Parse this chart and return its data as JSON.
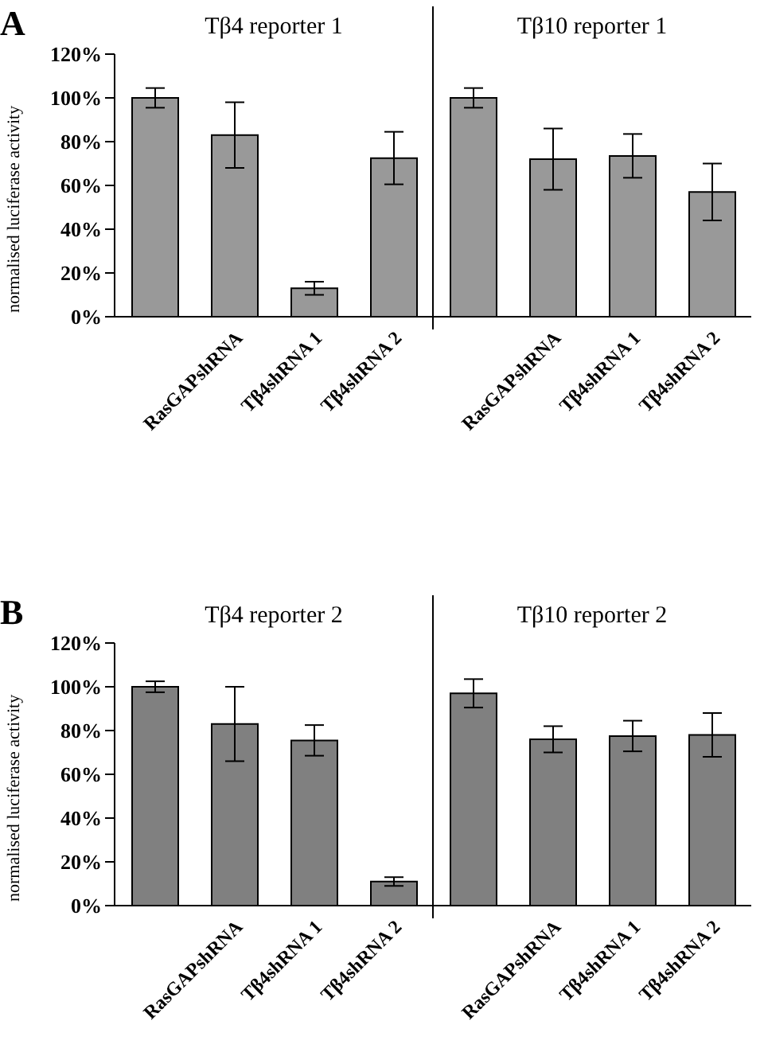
{
  "chart_data": [
    {
      "type": "bar",
      "title": "A",
      "ylabel": "normalised luciferase activity",
      "annotations": [
        "Tβ4 reporter 1",
        "Tβ10 reporter 1"
      ],
      "categories": [
        null,
        "RasGAPshRNA",
        "Tβ4shRNA 1",
        "Tβ4shRNA 2",
        null,
        "RasGAPshRNA",
        "Tβ4shRNA 1",
        "Tβ4shRNA 2"
      ],
      "values": [
        100,
        83,
        13,
        72.5,
        100,
        72,
        73.5,
        57
      ],
      "errors": [
        4.5,
        15,
        3,
        12,
        4.5,
        14,
        10,
        13
      ],
      "color": "#999999",
      "ylim": [
        0,
        120
      ],
      "yticks": [
        {
          "value": 0,
          "label": "0%"
        },
        {
          "value": 20,
          "label": "20%"
        },
        {
          "value": 40,
          "label": "40%"
        },
        {
          "value": 60,
          "label": "60%"
        },
        {
          "value": 80,
          "label": "80%"
        },
        {
          "value": 100,
          "label": "100%"
        },
        {
          "value": 120,
          "label": "120%"
        }
      ]
    },
    {
      "type": "bar",
      "title": "B",
      "ylabel": "normalised luciferase activity",
      "annotations": [
        "Tβ4 reporter 2",
        "Tβ10 reporter 2"
      ],
      "categories": [
        null,
        "RasGAPshRNA",
        "Tβ4shRNA 1",
        "Tβ4shRNA 2",
        null,
        "RasGAPshRNA",
        "Tβ4shRNA 1",
        "Tβ4shRNA 2"
      ],
      "values": [
        100,
        83,
        75.5,
        11,
        97,
        76,
        77.5,
        78
      ],
      "errors": [
        2.5,
        17,
        7,
        2,
        6.5,
        6,
        7,
        10
      ],
      "color": "#808080",
      "ylim": [
        0,
        120
      ],
      "yticks": [
        {
          "value": 0,
          "label": "0%"
        },
        {
          "value": 20,
          "label": "20%"
        },
        {
          "value": 40,
          "label": "40%"
        },
        {
          "value": 60,
          "label": "60%"
        },
        {
          "value": 80,
          "label": "80%"
        },
        {
          "value": 100,
          "label": "100%"
        },
        {
          "value": 120,
          "label": "120%"
        }
      ]
    }
  ]
}
